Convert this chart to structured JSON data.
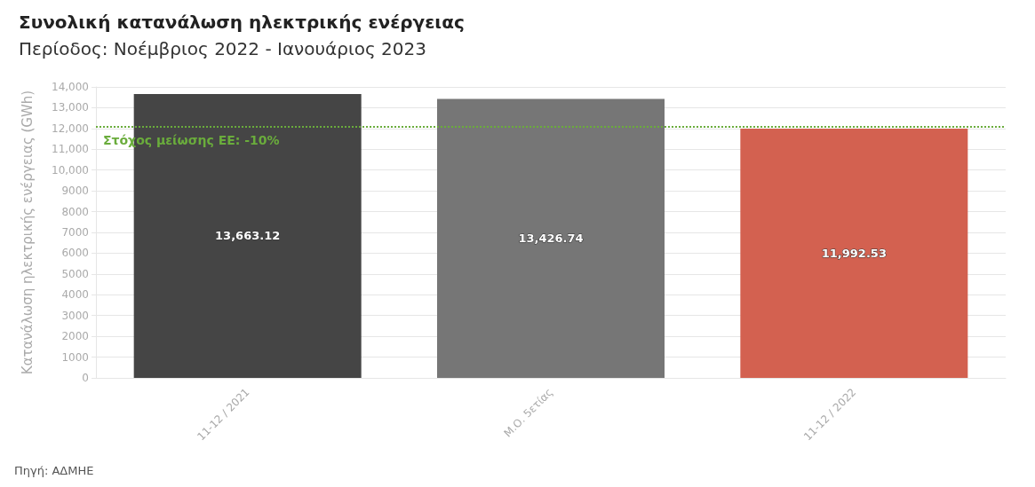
{
  "chart_data": {
    "type": "bar",
    "title": "Συνολική κατανάλωση ηλεκτρικής ενέργειας",
    "subtitle": "Περίοδος: Νοέμβριος 2022 - Ιανουάριος 2023",
    "ylabel": "Κατανάλωση ηλεκτρικής ενέργειας (GWh)",
    "categories": [
      "11-12 / 2021",
      "Μ.Ο. 5ετίας",
      "11-12 / 2022"
    ],
    "values": [
      13663.12,
      13426.74,
      11992.53
    ],
    "colors": [
      "#454545",
      "#767676",
      "#d36150"
    ],
    "value_labels": [
      "13,663.12",
      "13,426.74",
      "11,992.53"
    ],
    "ylim": [
      0,
      14000
    ],
    "yticks": [
      0,
      1000,
      2000,
      3000,
      4000,
      5000,
      6000,
      7000,
      8000,
      9000,
      {
        "value": 10000,
        "label": "10,000"
      },
      {
        "value": 11000,
        "label": "11,000"
      },
      {
        "value": 12000,
        "label": "12,000"
      },
      {
        "value": 13000,
        "label": "13,000"
      },
      {
        "value": 14000,
        "label": "14,000"
      }
    ],
    "ref_lines": [
      {
        "axis": "y",
        "value": 12084,
        "color": "#6aac3c",
        "line_style": "dotted"
      }
    ],
    "grid": "y",
    "annotations": [
      {
        "text": "Στόχος μείωσης ΕΕ: -10%",
        "y": 12084
      },
      "Πηγή: ΑΔΜΗΕ"
    ]
  }
}
